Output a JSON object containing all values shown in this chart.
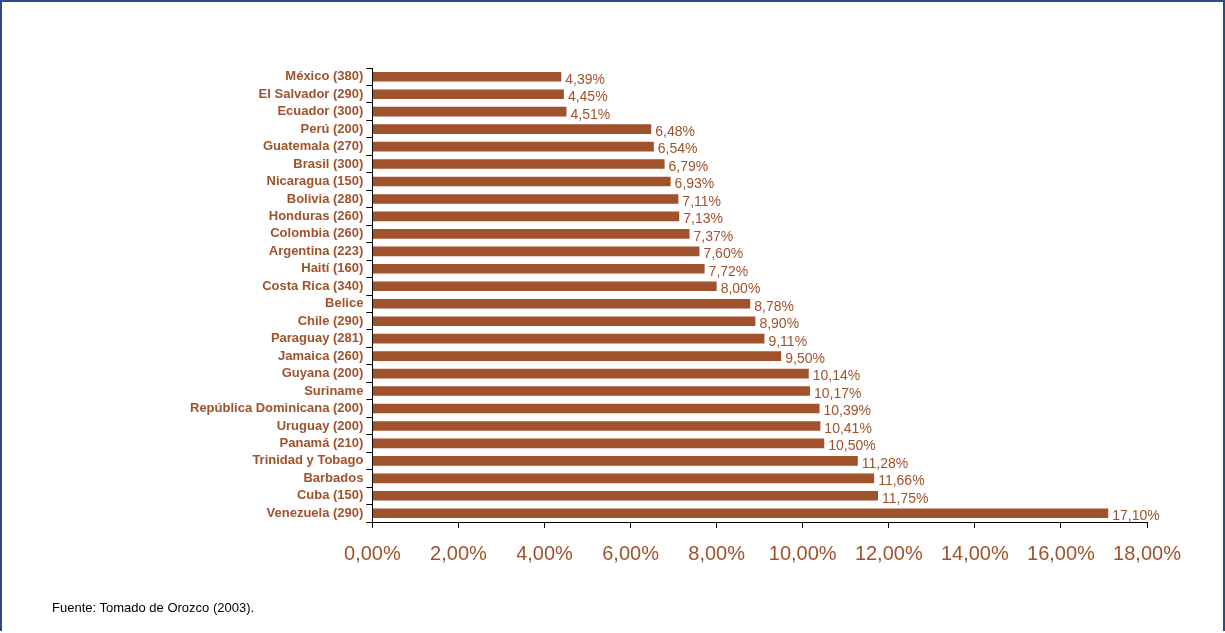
{
  "chart_data": {
    "type": "bar",
    "orientation": "horizontal",
    "categories": [
      "México (380)",
      "El Salvador (290)",
      "Ecuador (300)",
      "Perú (200)",
      "Guatemala (270)",
      "Brasil (300)",
      "Nicaragua (150)",
      "Bolivia (280)",
      "Honduras (260)",
      "Colombia (260)",
      "Argentina (223)",
      "Haití (160)",
      "Costa Rica (340)",
      "Belice",
      "Chile (290)",
      "Paraguay (281)",
      "Jamaica (260)",
      "Guyana (200)",
      "Suriname",
      "República Dominicana (200)",
      "Uruguay (200)",
      "Panamá (210)",
      "Trinidad y Tobago",
      "Barbados",
      "Cuba (150)",
      "Venezuela (290)"
    ],
    "values": [
      4.39,
      4.45,
      4.51,
      6.48,
      6.54,
      6.79,
      6.93,
      7.11,
      7.13,
      7.37,
      7.6,
      7.72,
      8.0,
      8.78,
      8.9,
      9.11,
      9.5,
      10.14,
      10.17,
      10.39,
      10.41,
      10.5,
      11.28,
      11.66,
      11.75,
      17.1
    ],
    "value_labels": [
      "4,39%",
      "4,45%",
      "4,51%",
      "6,48%",
      "6,54%",
      "6,79%",
      "6,93%",
      "7,11%",
      "7,13%",
      "7,37%",
      "7,60%",
      "7,72%",
      "8,00%",
      "8,78%",
      "8,90%",
      "9,11%",
      "9,50%",
      "10,14%",
      "10,17%",
      "10,39%",
      "10,41%",
      "10,50%",
      "11,28%",
      "11,66%",
      "11,75%",
      "17,10%"
    ],
    "color": "#a0522d",
    "xlim": [
      0,
      18
    ],
    "xticks": [
      {
        "value": 0,
        "label": "0,00%"
      },
      {
        "value": 2,
        "label": "2,00%"
      },
      {
        "value": 4,
        "label": "4,00%"
      },
      {
        "value": 6,
        "label": "6,00%"
      },
      {
        "value": 8,
        "label": "8,00%"
      },
      {
        "value": 10,
        "label": "10,00%"
      },
      {
        "value": 12,
        "label": "12,00%"
      },
      {
        "value": 14,
        "label": "14,00%"
      },
      {
        "value": 16,
        "label": "16,00%"
      },
      {
        "value": 18,
        "label": "18,00%"
      }
    ],
    "grid": false,
    "legend": false,
    "annotations": [
      "Fuente: Tomado de Orozco (2003)."
    ]
  }
}
